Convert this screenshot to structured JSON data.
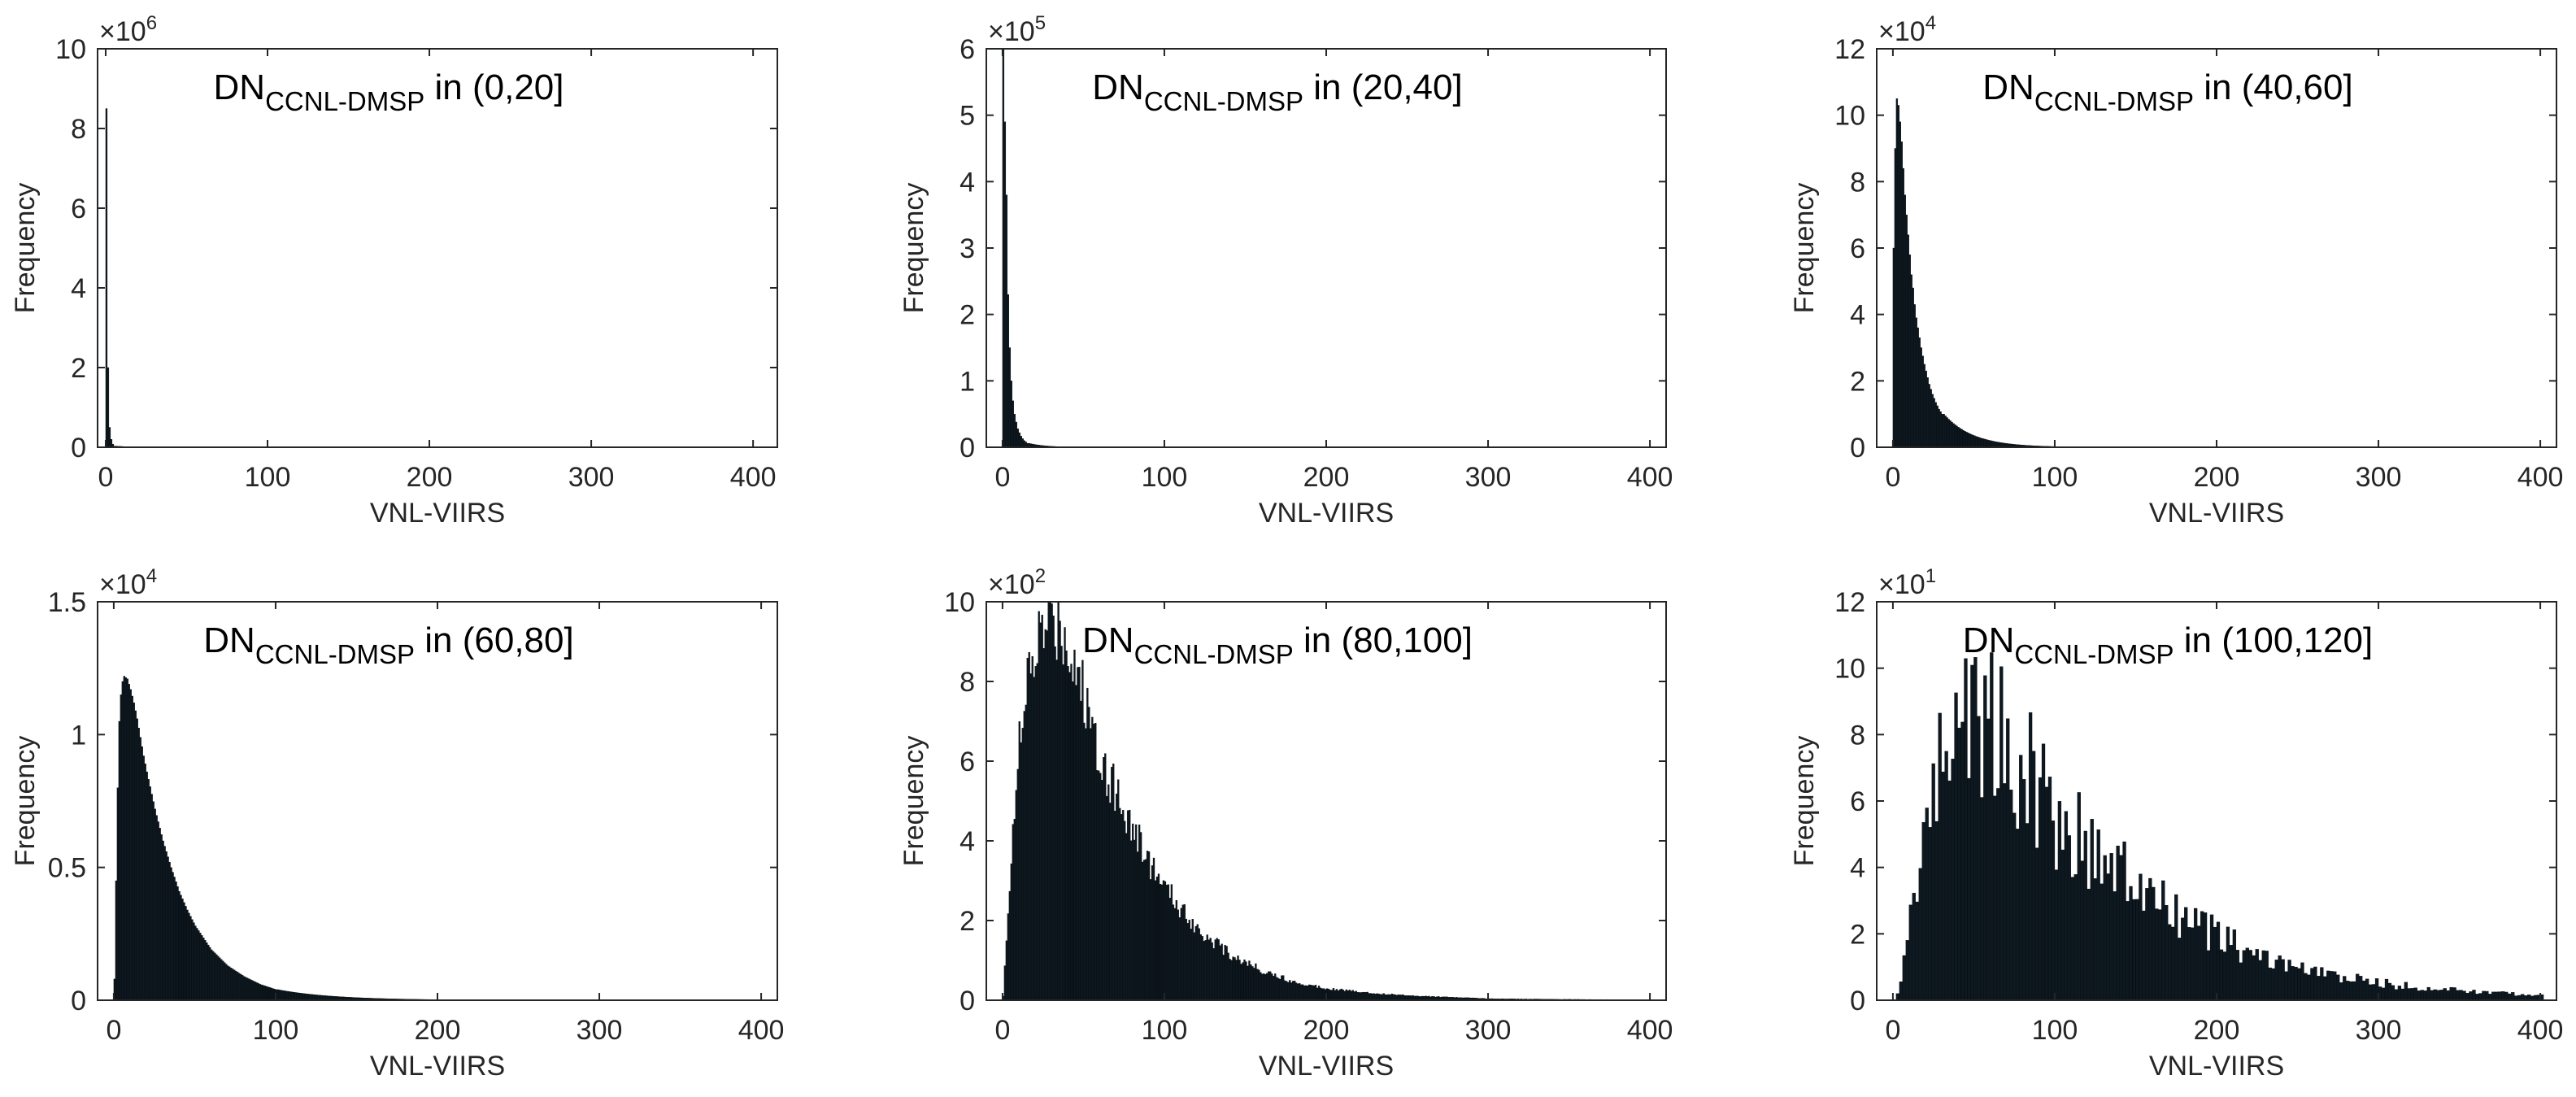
{
  "figure": {
    "xlabel": "VNL-VIIRS",
    "ylabel": "Frequency",
    "x_ticks": [
      "0",
      "100",
      "200",
      "300",
      "400"
    ],
    "title_main": "DN",
    "title_sub": "CCNL-DMSP",
    "title_prefix": " in "
  },
  "colors": {
    "bar": "#0d1820",
    "axis": "#262626",
    "background": "#ffffff"
  },
  "chart_data": [
    {
      "type": "bar",
      "title": "DN_CCNL-DMSP in (0,20]",
      "interval": "(0,20]",
      "xlabel": "VNL-VIIRS",
      "ylabel": "Frequency",
      "xlim": [
        -5,
        415
      ],
      "ylim": [
        0,
        10
      ],
      "y_ticks": [
        "0",
        "2",
        "4",
        "6",
        "8",
        "10"
      ],
      "multiplier_base": "×10",
      "multiplier_exp": "6",
      "bin_width": 1,
      "series": [
        {
          "name": "histogram",
          "x": [
            0,
            1,
            2,
            3,
            4,
            5
          ],
          "values": [
            8.5,
            2.0,
            0.5,
            0.2,
            0.08,
            0.03
          ]
        }
      ],
      "tail": {
        "from": 6,
        "to": 400,
        "start_value": 0.03,
        "decay": 10,
        "jitter": 0
      }
    },
    {
      "type": "bar",
      "title": "DN_CCNL-DMSP in (20,40]",
      "interval": "(20,40]",
      "xlabel": "VNL-VIIRS",
      "ylabel": "Frequency",
      "xlim": [
        -10,
        410
      ],
      "ylim": [
        0,
        6
      ],
      "y_ticks": [
        "0",
        "1",
        "2",
        "3",
        "4",
        "5",
        "6"
      ],
      "multiplier_base": "×10",
      "multiplier_exp": "5",
      "bin_width": 1,
      "series": [
        {
          "name": "histogram",
          "x": [
            0,
            1,
            2,
            3,
            4,
            5,
            6,
            7,
            8,
            9,
            10,
            11,
            12,
            13,
            14,
            15
          ],
          "values": [
            6.0,
            4.9,
            3.8,
            2.3,
            1.5,
            1.0,
            0.7,
            0.5,
            0.38,
            0.28,
            0.22,
            0.17,
            0.13,
            0.1,
            0.08,
            0.06
          ]
        }
      ],
      "tail": {
        "from": 16,
        "to": 400,
        "start_value": 0.06,
        "decay": 10,
        "jitter": 0
      }
    },
    {
      "type": "bar",
      "title": "DN_CCNL-DMSP in (40,60]",
      "interval": "(40,60]",
      "xlabel": "VNL-VIIRS",
      "ylabel": "Frequency",
      "xlim": [
        -10,
        410
      ],
      "ylim": [
        0,
        12
      ],
      "y_ticks": [
        "0",
        "2",
        "4",
        "6",
        "8",
        "10",
        "12"
      ],
      "multiplier_base": "×10",
      "multiplier_exp": "4",
      "bin_width": 1,
      "series": [
        {
          "name": "histogram",
          "x": [
            0,
            1,
            2,
            3,
            4,
            5,
            6,
            7,
            8,
            9,
            10,
            11,
            12,
            13,
            14,
            15,
            16,
            17,
            18,
            19,
            20,
            22,
            24,
            26,
            28,
            30
          ],
          "values": [
            6.0,
            9.0,
            10.5,
            10.3,
            9.8,
            9.2,
            8.4,
            7.6,
            7.0,
            6.4,
            5.8,
            5.2,
            4.8,
            4.3,
            3.9,
            3.6,
            3.3,
            3.0,
            2.75,
            2.5,
            2.3,
            1.9,
            1.6,
            1.35,
            1.15,
            1.0
          ]
        }
      ],
      "tail": {
        "from": 31,
        "to": 400,
        "start_value": 1.0,
        "decay": 18,
        "jitter": 0
      }
    },
    {
      "type": "bar",
      "title": "DN_CCNL-DMSP in (60,80]",
      "interval": "(60,80]",
      "xlabel": "VNL-VIIRS",
      "ylabel": "Frequency",
      "xlim": [
        -10,
        410
      ],
      "ylim": [
        0,
        1.5
      ],
      "y_ticks": [
        "0",
        "0.5",
        "1",
        "1.5"
      ],
      "multiplier_base": "×10",
      "multiplier_exp": "4",
      "bin_width": 1,
      "series": [
        {
          "name": "histogram",
          "x": [
            0,
            1,
            2,
            3,
            4,
            5,
            6,
            8,
            10,
            12,
            14,
            16,
            18,
            20,
            25,
            30,
            35,
            40,
            45,
            50,
            60,
            70,
            80,
            90,
            100
          ],
          "values": [
            0.08,
            0.45,
            0.8,
            1.05,
            1.15,
            1.2,
            1.22,
            1.21,
            1.17,
            1.12,
            1.06,
            0.99,
            0.92,
            0.86,
            0.72,
            0.6,
            0.5,
            0.41,
            0.34,
            0.28,
            0.19,
            0.13,
            0.09,
            0.06,
            0.04
          ]
        }
      ],
      "tail": {
        "from": 101,
        "to": 400,
        "start_value": 0.04,
        "decay": 35,
        "jitter": 0
      }
    },
    {
      "type": "bar",
      "title": "DN_CCNL-DMSP in (80,100]",
      "interval": "(80,100]",
      "xlabel": "VNL-VIIRS",
      "ylabel": "Frequency",
      "xlim": [
        -10,
        410
      ],
      "ylim": [
        0,
        10
      ],
      "y_ticks": [
        "0",
        "2",
        "4",
        "6",
        "8",
        "10"
      ],
      "multiplier_base": "×10",
      "multiplier_exp": "2",
      "bin_width": 1,
      "series": [
        {
          "name": "histogram",
          "x": [
            0,
            2,
            4,
            6,
            8,
            10,
            15,
            20,
            25,
            30,
            35,
            40,
            45,
            50,
            60,
            70,
            80,
            90,
            100,
            120,
            140,
            160,
            180,
            200,
            230,
            260,
            300
          ],
          "values": [
            0.1,
            1.5,
            3.0,
            4.5,
            5.5,
            6.3,
            7.8,
            8.8,
            9.3,
            9.5,
            9.5,
            9.0,
            8.4,
            7.6,
            6.2,
            5.2,
            4.3,
            3.5,
            2.8,
            1.8,
            1.15,
            0.75,
            0.45,
            0.3,
            0.17,
            0.1,
            0.04
          ]
        }
      ],
      "tail": {
        "from": 301,
        "to": 400,
        "start_value": 0.04,
        "decay": 80,
        "jitter": 0.12
      }
    },
    {
      "type": "bar",
      "title": "DN_CCNL-DMSP in (100,120]",
      "interval": "(100,120]",
      "xlabel": "VNL-VIIRS",
      "ylabel": "Frequency",
      "xlim": [
        -10,
        410
      ],
      "ylim": [
        0,
        12
      ],
      "y_ticks": [
        "0",
        "2",
        "4",
        "6",
        "8",
        "10",
        "12"
      ],
      "multiplier_base": "×10",
      "multiplier_exp": "1",
      "bin_width": 2,
      "series": [
        {
          "name": "histogram",
          "x": [
            0,
            4,
            8,
            12,
            16,
            20,
            25,
            30,
            35,
            40,
            45,
            50,
            55,
            60,
            70,
            80,
            90,
            100,
            120,
            140,
            160,
            180,
            200,
            220,
            250,
            280,
            320,
            360,
            400
          ],
          "values": [
            0,
            0.5,
            1.8,
            3.2,
            4.4,
            5.6,
            6.4,
            7.2,
            8.2,
            9.0,
            8.8,
            8.9,
            8.6,
            8.2,
            7.6,
            7.0,
            6.3,
            5.6,
            4.6,
            3.8,
            3.0,
            2.4,
            1.9,
            1.4,
            0.95,
            0.65,
            0.4,
            0.25,
            0.15
          ]
        }
      ],
      "tail": {
        "from": 401,
        "to": 400,
        "start_value": 0.15,
        "decay": 50,
        "jitter": 0.3
      }
    }
  ]
}
